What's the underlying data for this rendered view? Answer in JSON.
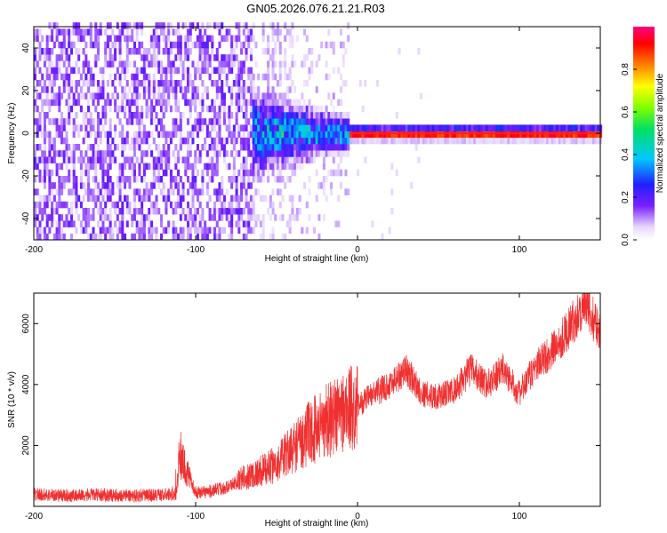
{
  "title": "GN05.2026.076.21.21.R03",
  "colors": {
    "snr_line": "#f03030",
    "spectro_peak": "#ff2020",
    "background": "#ffffff"
  },
  "chart_data": [
    {
      "type": "heatmap",
      "name": "spectrogram",
      "xlabel": "Height of straight line (km)",
      "ylabel": "Frequency (Hz)",
      "xlim": [
        -200,
        150
      ],
      "ylim": [
        -50,
        50
      ],
      "xticks": [
        -200,
        -100,
        0,
        100
      ],
      "yticks": [
        -40,
        -20,
        0,
        20,
        40
      ],
      "colorbar": {
        "label": "Normalized spectral amplitude",
        "range": [
          0,
          1
        ],
        "ticks": [
          0.0,
          0.2,
          0.4,
          0.6,
          0.8
        ]
      },
      "features": {
        "noise_region_x": [
          -200,
          -65
        ],
        "signal_onset_x": -70,
        "carrier_frequency_hz": 0,
        "strong_carrier_from_x": 0
      }
    },
    {
      "type": "line",
      "name": "snr",
      "xlabel": "Height of straight line (km)",
      "ylabel": "SNR (10 * v/v)",
      "xlim": [
        -200,
        150
      ],
      "ylim": [
        0,
        7000
      ],
      "xticks": [
        -200,
        -100,
        0,
        100
      ],
      "yticks": [
        2000,
        4000,
        6000
      ],
      "series": [
        {
          "x": [
            -200,
            -180,
            -160,
            -140,
            -120,
            -112,
            -110,
            -100,
            -90,
            -80,
            -70,
            -60,
            -50,
            -40,
            -30,
            -20,
            -10,
            0,
            10,
            20,
            30,
            40,
            50,
            60,
            70,
            80,
            90,
            100,
            110,
            120,
            130,
            140,
            150
          ],
          "y": [
            400,
            350,
            380,
            350,
            380,
            400,
            1700,
            450,
            500,
            650,
            950,
            1150,
            1400,
            1900,
            2400,
            2800,
            3100,
            3300,
            3700,
            4000,
            4500,
            3700,
            3600,
            3800,
            4500,
            4000,
            4500,
            3700,
            4600,
            5100,
            5800,
            6600,
            5800
          ]
        }
      ]
    }
  ]
}
